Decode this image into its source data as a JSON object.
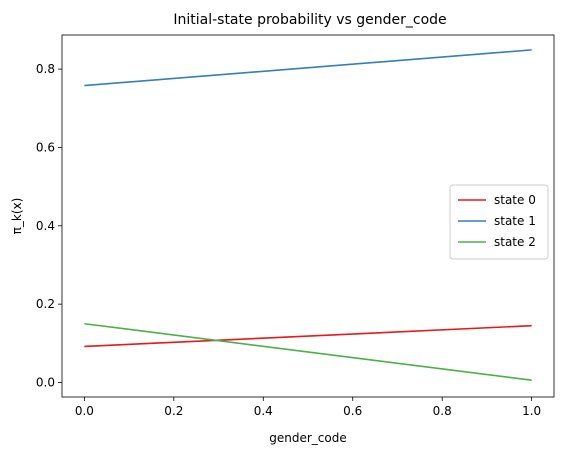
{
  "chart_data": {
    "type": "line",
    "title": "Initial-state probability vs gender_code",
    "xlabel": "gender_code",
    "ylabel": "π_k(x)",
    "xlim": [
      -0.05,
      1.05
    ],
    "ylim": [
      -0.037,
      0.887
    ],
    "xticks": [
      0.0,
      0.2,
      0.4,
      0.6,
      0.8,
      1.0
    ],
    "xtick_labels": [
      "0.0",
      "0.2",
      "0.4",
      "0.6",
      "0.8",
      "1.0"
    ],
    "yticks": [
      0.0,
      0.2,
      0.4,
      0.6,
      0.8
    ],
    "ytick_labels": [
      "0.0",
      "0.2",
      "0.4",
      "0.6",
      "0.8"
    ],
    "grid": false,
    "legend_position": "center-right",
    "series": [
      {
        "name": "state 0",
        "color": "#e41a1c",
        "x": [
          0.0,
          1.0
        ],
        "y": [
          0.092,
          0.145
        ]
      },
      {
        "name": "state 1",
        "color": "#377eb8",
        "x": [
          0.0,
          1.0
        ],
        "y": [
          0.758,
          0.849
        ]
      },
      {
        "name": "state 2",
        "color": "#4daf4a",
        "x": [
          0.0,
          1.0
        ],
        "y": [
          0.15,
          0.006
        ]
      }
    ]
  }
}
